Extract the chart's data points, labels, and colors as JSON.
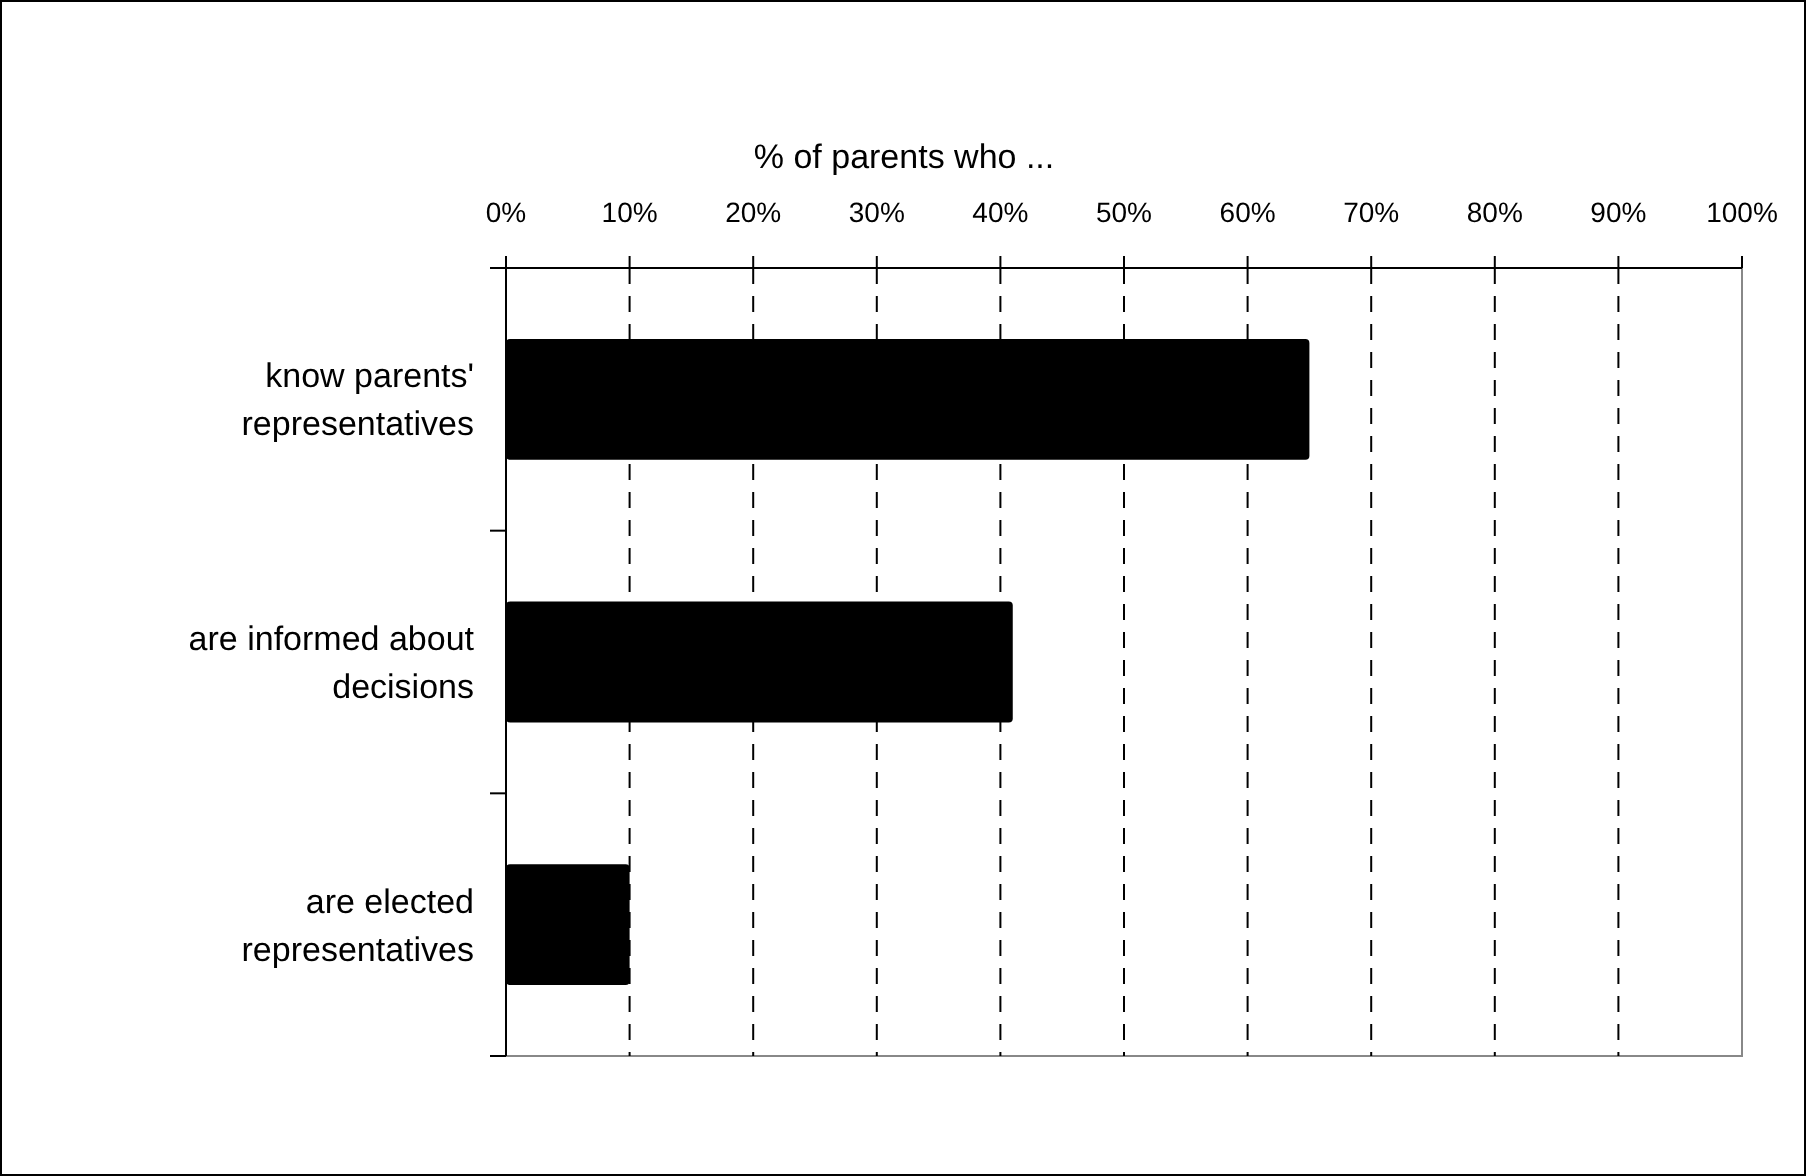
{
  "chart_data": {
    "type": "bar",
    "orientation": "horizontal",
    "title": "% of parents who ...",
    "categories": [
      "know parents' representatives",
      "are informed about decisions",
      "are elected representatives"
    ],
    "values": [
      65,
      41,
      10
    ],
    "color": "#000000",
    "xlim": [
      0,
      100
    ],
    "xticks": [
      {
        "value": 0,
        "label": "0%"
      },
      {
        "value": 10,
        "label": "10%"
      },
      {
        "value": 20,
        "label": "20%"
      },
      {
        "value": 30,
        "label": "30%"
      },
      {
        "value": 40,
        "label": "40%"
      },
      {
        "value": 50,
        "label": "50%"
      },
      {
        "value": 60,
        "label": "60%"
      },
      {
        "value": 70,
        "label": "70%"
      },
      {
        "value": 80,
        "label": "80%"
      },
      {
        "value": 90,
        "label": "90%"
      },
      {
        "value": 100,
        "label": "100%"
      }
    ],
    "grid": "x"
  }
}
